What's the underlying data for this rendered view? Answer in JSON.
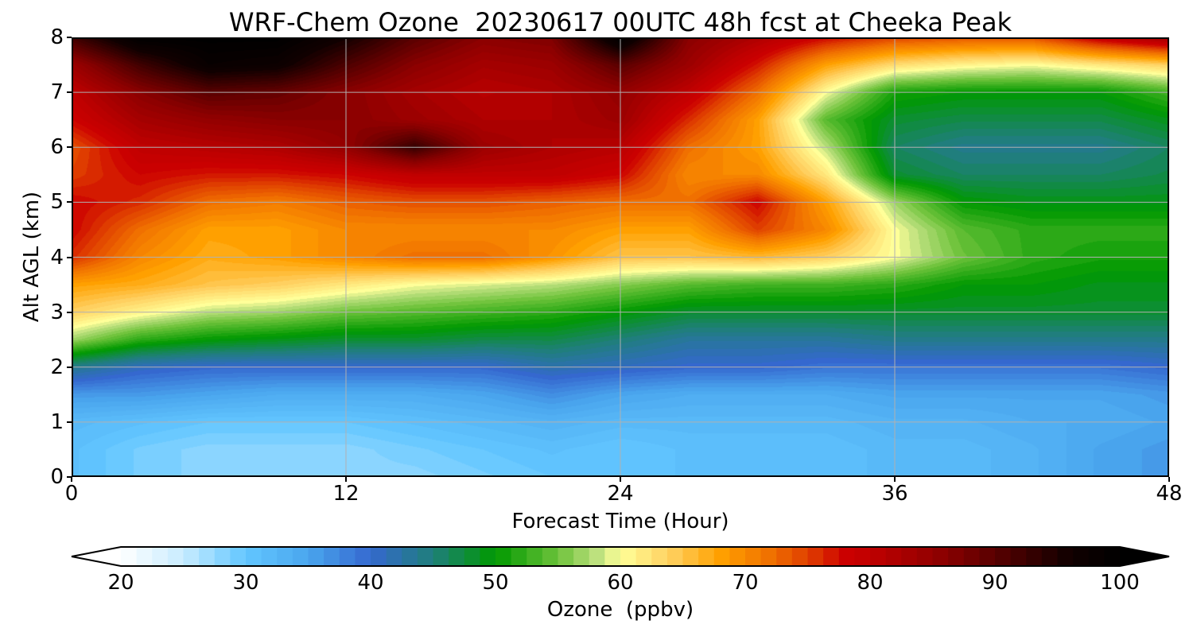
{
  "chart_data": {
    "type": "heatmap",
    "title": "WRF-Chem Ozone  20230617 00UTC 48h fcst at Cheeka Peak",
    "xlabel": "Forecast Time (Hour)",
    "ylabel": "Alt AGL (km)",
    "xlim": [
      0,
      48
    ],
    "ylim": [
      0,
      8
    ],
    "x_ticks": [
      "0",
      "12",
      "24",
      "36",
      "48"
    ],
    "y_ticks": [
      "0",
      "1",
      "2",
      "3",
      "4",
      "5",
      "6",
      "7",
      "8"
    ],
    "grid": true,
    "x": [
      0,
      3,
      6,
      9,
      12,
      15,
      18,
      21,
      24,
      27,
      30,
      33,
      36,
      39,
      42,
      45,
      48
    ],
    "y": [
      0,
      0.5,
      1,
      1.5,
      2,
      2.5,
      3,
      3.5,
      4,
      4.5,
      5,
      5.5,
      6,
      6.5,
      7,
      7.5,
      8
    ],
    "z": [
      [
        31,
        29,
        28,
        28,
        28,
        28,
        29,
        30,
        30,
        31,
        31,
        31,
        32,
        32,
        33,
        35,
        36
      ],
      [
        31,
        29,
        28,
        28,
        28,
        29,
        30,
        31,
        30,
        31,
        31,
        31,
        32,
        32,
        33,
        35,
        36
      ],
      [
        32,
        31,
        30,
        30,
        30,
        31,
        32,
        33,
        32,
        32,
        32,
        32,
        33,
        33,
        34,
        34,
        35
      ],
      [
        36,
        36,
        35,
        34,
        34,
        34,
        35,
        37,
        35,
        34,
        34,
        34,
        35,
        35,
        35,
        35,
        36
      ],
      [
        44,
        41,
        40,
        40,
        40,
        40,
        40,
        42,
        41,
        40,
        40,
        39,
        39,
        39,
        39,
        39,
        40
      ],
      [
        57,
        52,
        50,
        49,
        48,
        48,
        47,
        47,
        45,
        43,
        43,
        43,
        44,
        44,
        44,
        44,
        44
      ],
      [
        64,
        61,
        58,
        57,
        55,
        54,
        53,
        52,
        50,
        48,
        48,
        48,
        48,
        48,
        48,
        48,
        48
      ],
      [
        68,
        67,
        65,
        64,
        62,
        60,
        59,
        58,
        56,
        54,
        53,
        53,
        52,
        50,
        50,
        49,
        49
      ],
      [
        76,
        70,
        67,
        68,
        70,
        72,
        72,
        69,
        65,
        65,
        66,
        64,
        60,
        55,
        52,
        51,
        51
      ],
      [
        78,
        72,
        68,
        68,
        70,
        70,
        70,
        70,
        68,
        68,
        75,
        70,
        60,
        54,
        52,
        52,
        52
      ],
      [
        78,
        76,
        72,
        71,
        73,
        74,
        74,
        73,
        72,
        72,
        78,
        68,
        57,
        50,
        49,
        49,
        49
      ],
      [
        75,
        78,
        77,
        77,
        78,
        80,
        80,
        80,
        78,
        70,
        70,
        62,
        48,
        46,
        46,
        46,
        47
      ],
      [
        74,
        80,
        81,
        82,
        85,
        93,
        84,
        82,
        81,
        72,
        68,
        58,
        46,
        44,
        44,
        44,
        46
      ],
      [
        78,
        83,
        85,
        86,
        86,
        84,
        82,
        82,
        84,
        76,
        68,
        54,
        48,
        47,
        47,
        47,
        49
      ],
      [
        80,
        86,
        90,
        89,
        86,
        83,
        81,
        82,
        85,
        80,
        72,
        60,
        51,
        50,
        50,
        50,
        53
      ],
      [
        84,
        92,
        98,
        97,
        91,
        86,
        83,
        84,
        90,
        84,
        77,
        68,
        63,
        61,
        60,
        62,
        64
      ],
      [
        92,
        100,
        100,
        100,
        96,
        90,
        86,
        87,
        100,
        86,
        82,
        78,
        75,
        74,
        74,
        80,
        84
      ]
    ],
    "colorbar": {
      "label": "Ozone  (ppbv)",
      "range": [
        20,
        100
      ],
      "ticks": [
        "20",
        "30",
        "40",
        "50",
        "60",
        "70",
        "80",
        "90",
        "100"
      ],
      "extend": "both",
      "colors": [
        [
          20,
          "#ffffff"
        ],
        [
          25,
          "#c8ecff"
        ],
        [
          30,
          "#62c6ff"
        ],
        [
          35,
          "#4aa6ee"
        ],
        [
          40,
          "#3568cf"
        ],
        [
          45,
          "#1f7f7a"
        ],
        [
          50,
          "#009900"
        ],
        [
          55,
          "#6dc23a"
        ],
        [
          58,
          "#b9df7c"
        ],
        [
          60,
          "#ffff99"
        ],
        [
          64,
          "#ffd060"
        ],
        [
          68,
          "#ffa000"
        ],
        [
          72,
          "#f07000"
        ],
        [
          75,
          "#e04000"
        ],
        [
          78,
          "#cc0000"
        ],
        [
          80,
          "#c00000"
        ],
        [
          86,
          "#8a0000"
        ],
        [
          92,
          "#400000"
        ],
        [
          96,
          "#100000"
        ],
        [
          100,
          "#000000"
        ]
      ]
    }
  }
}
